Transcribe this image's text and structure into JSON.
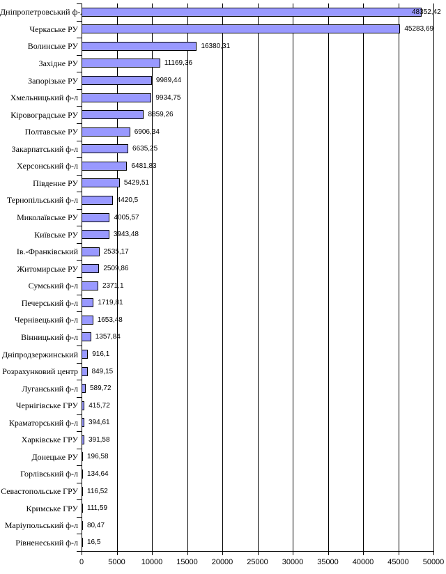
{
  "chart_data": {
    "type": "bar",
    "orientation": "horizontal",
    "title": "",
    "xlabel": "",
    "ylabel": "",
    "legend": null,
    "grid": true,
    "xlim": [
      0,
      50000
    ],
    "x_ticks": [
      0,
      5000,
      10000,
      15000,
      20000,
      25000,
      30000,
      35000,
      40000,
      45000,
      50000
    ],
    "x_tick_labels": [
      "0",
      "5000",
      "10000",
      "15000",
      "20000",
      "25000",
      "30000",
      "35000",
      "40000",
      "45000",
      "50000"
    ],
    "bar_color": "#9999FF",
    "bar_border_color": "#000000",
    "categories": [
      "Дніпропетровський ф-л",
      "Черкаське РУ",
      "Волинське РУ",
      "Західне РУ",
      "Запорізьке РУ",
      "Хмельницький ф-л",
      "Кіровоградське РУ",
      "Полтавське РУ",
      "Закарпатський ф-л",
      "Херсонський ф-л",
      "Південне РУ",
      "Тернопільський ф-л",
      "Миколаївське РУ",
      "Київське РУ",
      "Ів.-Франківський",
      "Житомирське РУ",
      "Сумський ф-л",
      "Печерський ф-л",
      "Чернівецький ф-л",
      "Вінницький ф-л",
      "Дніпродзержинський",
      "Розрахунковий центр",
      "Луганський ф-л",
      "Чернігівське ГРУ",
      "Краматорський ф-л",
      "Харківське ГРУ",
      "Донецьке РУ",
      "Горлівський ф-л",
      "Севастопольське ГРУ",
      "Кримське ГРУ",
      "Маріупольський ф-л",
      "Рівненеський ф-л"
    ],
    "values": [
      48352.42,
      45283.69,
      16380.31,
      11169.36,
      9989.44,
      9934.75,
      8859.26,
      6906.34,
      6635.25,
      6481.83,
      5429.51,
      4420.5,
      4005.57,
      3943.48,
      2535.17,
      2509.86,
      2371.1,
      1719.81,
      1653.48,
      1357.84,
      916.1,
      849.15,
      589.72,
      415.72,
      394.61,
      391.58,
      196.58,
      134.64,
      116.52,
      111.59,
      80.47,
      16.5
    ],
    "value_labels": [
      "48352,42",
      "45283,69",
      "16380,31",
      "11169,36",
      "9989,44",
      "9934,75",
      "8859,26",
      "6906,34",
      "6635,25",
      "6481,83",
      "5429,51",
      "4420,5",
      "4005,57",
      "3943,48",
      "2535,17",
      "2509,86",
      "2371,1",
      "1719,81",
      "1653,48",
      "1357,84",
      "916,1",
      "849,15",
      "589,72",
      "415,72",
      "394,61",
      "391,58",
      "196,58",
      "134,64",
      "116,52",
      "111,59",
      "80,47",
      "16,5"
    ]
  }
}
